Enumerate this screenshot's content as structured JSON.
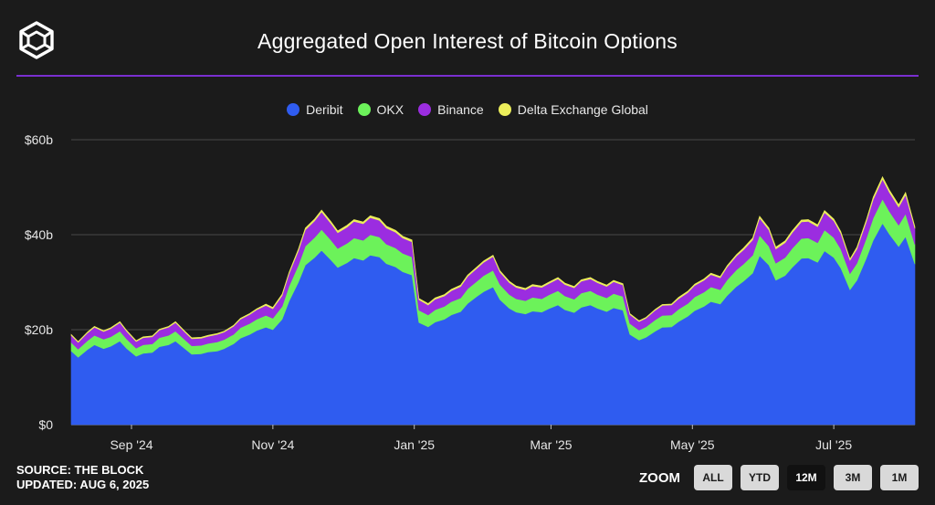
{
  "header": {
    "title": "Aggregated Open Interest of Bitcoin Options"
  },
  "legend": [
    {
      "name": "Deribit",
      "color": "#2f5cf0"
    },
    {
      "name": "OKX",
      "color": "#6cf25a"
    },
    {
      "name": "Binance",
      "color": "#9b2de0"
    },
    {
      "name": "Delta Exchange Global",
      "color": "#ecee5a"
    }
  ],
  "footer": {
    "source": "SOURCE: THE BLOCK",
    "updated": "UPDATED: AUG 6, 2025"
  },
  "zoom": {
    "label": "ZOOM",
    "buttons": [
      "ALL",
      "YTD",
      "12M",
      "3M",
      "1M"
    ],
    "active": "12M"
  },
  "chart_data": {
    "type": "area",
    "stacked": true,
    "grid": true,
    "legend_position": "top-center",
    "y_ticks": [
      "$0",
      "$20b",
      "$40b",
      "$60b"
    ],
    "ylim": [
      0,
      60
    ],
    "x_ticks": [
      {
        "label": "Sep '24",
        "date": "2024-09-01"
      },
      {
        "label": "Nov '24",
        "date": "2024-11-01"
      },
      {
        "label": "Jan '25",
        "date": "2025-01-01"
      },
      {
        "label": "Mar '25",
        "date": "2025-03-01"
      },
      {
        "label": "May '25",
        "date": "2025-05-01"
      },
      {
        "label": "Jul '25",
        "date": "2025-07-01"
      }
    ],
    "x": [
      "2024-08-06",
      "2024-08-09",
      "2024-08-13",
      "2024-08-16",
      "2024-08-20",
      "2024-08-23",
      "2024-08-27",
      "2024-08-30",
      "2024-09-03",
      "2024-09-06",
      "2024-09-10",
      "2024-09-13",
      "2024-09-17",
      "2024-09-20",
      "2024-09-24",
      "2024-09-27",
      "2024-10-01",
      "2024-10-04",
      "2024-10-08",
      "2024-10-11",
      "2024-10-15",
      "2024-10-18",
      "2024-10-22",
      "2024-10-25",
      "2024-10-29",
      "2024-11-01",
      "2024-11-05",
      "2024-11-08",
      "2024-11-12",
      "2024-11-15",
      "2024-11-19",
      "2024-11-22",
      "2024-11-26",
      "2024-11-29",
      "2024-12-03",
      "2024-12-06",
      "2024-12-10",
      "2024-12-13",
      "2024-12-17",
      "2024-12-20",
      "2024-12-24",
      "2024-12-27",
      "2024-12-31",
      "2025-01-03",
      "2025-01-07",
      "2025-01-10",
      "2025-01-14",
      "2025-01-17",
      "2025-01-21",
      "2025-01-24",
      "2025-01-28",
      "2025-01-31",
      "2025-02-04",
      "2025-02-07",
      "2025-02-11",
      "2025-02-14",
      "2025-02-18",
      "2025-02-21",
      "2025-02-25",
      "2025-02-28",
      "2025-03-04",
      "2025-03-07",
      "2025-03-11",
      "2025-03-14",
      "2025-03-18",
      "2025-03-21",
      "2025-03-25",
      "2025-03-28",
      "2025-04-01",
      "2025-04-04",
      "2025-04-08",
      "2025-04-11",
      "2025-04-15",
      "2025-04-18",
      "2025-04-22",
      "2025-04-25",
      "2025-04-29",
      "2025-05-02",
      "2025-05-06",
      "2025-05-09",
      "2025-05-13",
      "2025-05-16",
      "2025-05-20",
      "2025-05-23",
      "2025-05-27",
      "2025-05-30",
      "2025-06-03",
      "2025-06-06",
      "2025-06-10",
      "2025-06-13",
      "2025-06-17",
      "2025-06-20",
      "2025-06-24",
      "2025-06-27",
      "2025-07-01",
      "2025-07-04",
      "2025-07-08",
      "2025-07-11",
      "2025-07-15",
      "2025-07-18",
      "2025-07-22",
      "2025-07-25",
      "2025-07-29",
      "2025-08-01",
      "2025-08-05"
    ],
    "series": [
      {
        "name": "Deribit",
        "values": [
          15.5,
          14.2,
          15.8,
          16.8,
          16.0,
          16.5,
          17.6,
          16.0,
          14.4,
          15.0,
          15.2,
          16.4,
          16.8,
          17.6,
          16.0,
          14.8,
          14.9,
          15.3,
          15.5,
          16.0,
          17.0,
          18.2,
          19.0,
          19.8,
          20.5,
          20.0,
          22.2,
          26.0,
          30.0,
          33.6,
          35.2,
          36.7,
          34.7,
          33.1,
          34.1,
          35.1,
          34.6,
          35.7,
          35.3,
          33.9,
          33.2,
          32.2,
          31.5,
          21.5,
          20.6,
          21.6,
          22.2,
          23.1,
          23.8,
          25.5,
          27.0,
          28.0,
          29.0,
          26.3,
          24.5,
          23.7,
          23.3,
          23.9,
          23.7,
          24.4,
          25.2,
          24.2,
          23.6,
          24.7,
          25.2,
          24.5,
          23.8,
          24.6,
          24.1,
          19.0,
          17.8,
          18.4,
          19.7,
          20.5,
          20.6,
          21.7,
          22.8,
          24.0,
          24.9,
          25.9,
          25.4,
          27.2,
          29.1,
          30.2,
          31.9,
          35.6,
          33.6,
          30.4,
          31.4,
          33.1,
          35.0,
          35.1,
          34.2,
          36.6,
          35.2,
          33.0,
          28.4,
          30.4,
          35.0,
          38.8,
          42.4,
          40.1,
          37.5,
          39.6,
          33.8
        ]
      },
      {
        "name": "OKX",
        "values": [
          1.8,
          1.7,
          1.9,
          2.0,
          2.0,
          2.0,
          2.1,
          2.0,
          1.7,
          1.8,
          1.8,
          1.9,
          2.0,
          2.1,
          1.9,
          1.8,
          1.8,
          1.8,
          1.9,
          1.9,
          2.0,
          2.2,
          2.3,
          2.4,
          2.5,
          2.4,
          2.7,
          3.2,
          3.6,
          4.0,
          4.2,
          4.4,
          4.2,
          4.0,
          4.1,
          4.2,
          4.2,
          4.3,
          4.2,
          4.1,
          4.0,
          3.9,
          3.8,
          2.6,
          2.5,
          2.6,
          2.7,
          2.8,
          2.9,
          3.1,
          3.2,
          3.4,
          3.5,
          3.2,
          2.9,
          2.8,
          2.8,
          2.9,
          2.8,
          2.9,
          3.0,
          2.9,
          2.8,
          3.0,
          3.0,
          2.9,
          2.9,
          3.0,
          2.9,
          2.3,
          2.1,
          2.2,
          2.4,
          2.5,
          2.5,
          2.6,
          2.7,
          2.9,
          3.0,
          3.1,
          3.0,
          3.3,
          3.5,
          3.6,
          3.8,
          4.3,
          4.0,
          3.6,
          3.8,
          4.0,
          4.2,
          4.2,
          4.1,
          4.4,
          4.2,
          4.0,
          3.4,
          3.6,
          4.2,
          4.7,
          5.1,
          4.8,
          4.5,
          4.8,
          4.1
        ]
      },
      {
        "name": "Binance",
        "values": [
          1.5,
          1.4,
          1.6,
          1.7,
          1.6,
          1.7,
          1.8,
          1.6,
          1.4,
          1.5,
          1.5,
          1.6,
          1.7,
          1.8,
          1.6,
          1.5,
          1.5,
          1.5,
          1.6,
          1.6,
          1.7,
          1.8,
          1.9,
          2.0,
          2.1,
          2.0,
          2.3,
          2.6,
          3.0,
          3.4,
          3.5,
          3.7,
          3.5,
          3.3,
          3.4,
          3.5,
          3.5,
          3.6,
          3.5,
          3.4,
          3.3,
          3.2,
          3.2,
          2.2,
          2.1,
          2.2,
          2.2,
          2.3,
          2.4,
          2.6,
          2.7,
          2.8,
          2.9,
          2.6,
          2.5,
          2.4,
          2.3,
          2.4,
          2.4,
          2.4,
          2.5,
          2.4,
          2.4,
          2.5,
          2.5,
          2.5,
          2.4,
          2.5,
          2.4,
          1.9,
          1.8,
          1.8,
          2.0,
          2.1,
          2.1,
          2.2,
          2.3,
          2.4,
          2.5,
          2.6,
          2.5,
          2.7,
          2.9,
          3.0,
          3.2,
          3.6,
          3.4,
          3.0,
          3.1,
          3.3,
          3.5,
          3.5,
          3.4,
          3.7,
          3.5,
          3.3,
          2.8,
          3.0,
          3.5,
          3.9,
          4.2,
          4.0,
          3.8,
          4.0,
          3.4
        ]
      },
      {
        "name": "Delta Exchange Global",
        "values": [
          0.2,
          0.2,
          0.2,
          0.2,
          0.2,
          0.2,
          0.2,
          0.2,
          0.2,
          0.2,
          0.2,
          0.2,
          0.2,
          0.2,
          0.2,
          0.2,
          0.2,
          0.2,
          0.2,
          0.2,
          0.2,
          0.2,
          0.2,
          0.2,
          0.3,
          0.3,
          0.3,
          0.3,
          0.4,
          0.4,
          0.4,
          0.4,
          0.4,
          0.4,
          0.4,
          0.4,
          0.4,
          0.4,
          0.4,
          0.4,
          0.4,
          0.4,
          0.4,
          0.3,
          0.3,
          0.3,
          0.3,
          0.3,
          0.3,
          0.3,
          0.3,
          0.3,
          0.3,
          0.3,
          0.3,
          0.3,
          0.3,
          0.3,
          0.3,
          0.3,
          0.3,
          0.3,
          0.3,
          0.3,
          0.3,
          0.3,
          0.3,
          0.3,
          0.3,
          0.2,
          0.2,
          0.2,
          0.2,
          0.2,
          0.2,
          0.3,
          0.3,
          0.3,
          0.3,
          0.3,
          0.3,
          0.3,
          0.3,
          0.4,
          0.4,
          0.4,
          0.4,
          0.4,
          0.4,
          0.4,
          0.4,
          0.4,
          0.4,
          0.4,
          0.4,
          0.4,
          0.3,
          0.4,
          0.4,
          0.5,
          0.5,
          0.5,
          0.5,
          0.5,
          0.4
        ]
      }
    ]
  }
}
